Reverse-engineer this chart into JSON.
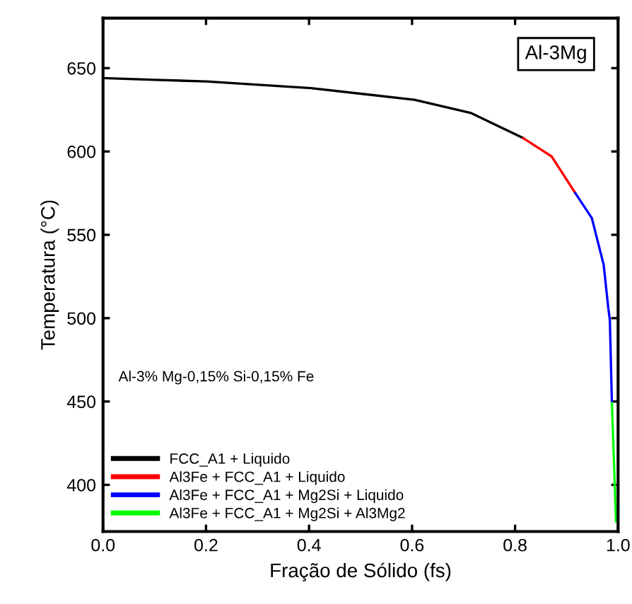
{
  "chart_data": {
    "type": "line",
    "xlabel": "Fração de Sólido (fs)",
    "ylabel": "Temperatura (°C)",
    "xlim": [
      0,
      1
    ],
    "ylim": [
      372,
      680
    ],
    "xticks": [
      {
        "value": 0,
        "label": "0.0"
      },
      0.2,
      0.4,
      0.6,
      0.8,
      {
        "value": 1,
        "label": "1.0"
      }
    ],
    "yticks": [
      400,
      450,
      500,
      550,
      600,
      650
    ],
    "grid": false,
    "legend": "bottom left",
    "line_style": "solid",
    "marker": "none",
    "annotations": [
      "Al-3Mg",
      "Al-3% Mg-0,15% Si-0,15% Fe"
    ],
    "series": [
      {
        "name": "FCC_A1 + Liquido",
        "color": "#000000",
        "x": [
          0,
          0.1,
          0.2,
          0.404,
          0.605,
          0.715,
          0.816
        ],
        "values": [
          644,
          643,
          642,
          638,
          631,
          623,
          608
        ]
      },
      {
        "name": "Al3Fe + FCC_A1 + Liquido",
        "color": "#ff0000",
        "x": [
          0.816,
          0.871,
          0.917
        ],
        "values": [
          608,
          597,
          575
        ]
      },
      {
        "name": "Al3Fe + FCC_A1 + Mg2Si + Liquido",
        "color": "#0000ff",
        "x": [
          0.917,
          0.949,
          0.972,
          0.981,
          0.984,
          0.988
        ],
        "values": [
          575,
          560,
          532,
          506,
          499,
          449
        ]
      },
      {
        "name": "Al3Fe + FCC_A1 + Mg2Si + Al3Mg2",
        "color": "#00ff00",
        "x": [
          0.988,
          0.996
        ],
        "values": [
          449,
          378
        ]
      }
    ]
  }
}
